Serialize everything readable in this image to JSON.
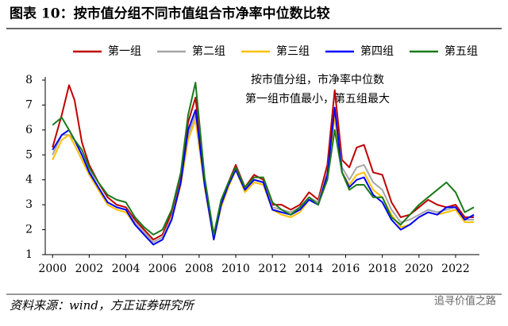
{
  "chart_data": {
    "type": "line",
    "title": "图表 10：按市值分组不同市值组合市净率中位数比较",
    "annotations": [
      "按市值分组，市净率中位数",
      "第一组市值最小，第五组最大"
    ],
    "source": "资料来源：wind，方正证券研究所",
    "watermark": "追寻价值之路",
    "x": [
      2000.0,
      2000.5,
      2000.9,
      2001.2,
      2001.6,
      2002.0,
      2002.5,
      2003.0,
      2003.5,
      2004.0,
      2004.5,
      2005.0,
      2005.5,
      2006.0,
      2006.5,
      2007.0,
      2007.4,
      2007.8,
      2008.3,
      2008.8,
      2009.2,
      2009.6,
      2010.0,
      2010.5,
      2011.0,
      2011.5,
      2012.0,
      2012.5,
      2013.0,
      2013.5,
      2014.0,
      2014.5,
      2015.0,
      2015.4,
      2015.8,
      2016.2,
      2016.6,
      2017.0,
      2017.5,
      2018.0,
      2018.5,
      2019.0,
      2019.5,
      2020.0,
      2020.5,
      2021.0,
      2021.5,
      2022.0,
      2022.5,
      2023.0
    ],
    "series": [
      {
        "name": "第一组",
        "color": "#c00000",
        "values": [
          5.3,
          6.6,
          7.8,
          7.2,
          5.5,
          4.6,
          3.9,
          3.3,
          3.0,
          2.9,
          2.4,
          2.0,
          1.6,
          1.8,
          2.7,
          4.2,
          6.3,
          7.3,
          4.0,
          1.8,
          3.1,
          3.9,
          4.6,
          3.7,
          4.2,
          4.0,
          3.0,
          3.0,
          2.8,
          3.0,
          3.5,
          3.2,
          4.6,
          7.6,
          4.8,
          4.5,
          5.3,
          5.4,
          4.3,
          4.2,
          3.1,
          2.5,
          2.6,
          2.9,
          3.2,
          3.0,
          2.9,
          3.0,
          2.5,
          2.5
        ]
      },
      {
        "name": "第二组",
        "color": "#a6a6a6",
        "values": [
          5.0,
          5.8,
          5.8,
          5.6,
          5.0,
          4.4,
          3.7,
          3.1,
          2.9,
          2.8,
          2.3,
          1.9,
          1.5,
          1.7,
          2.5,
          3.9,
          5.8,
          6.6,
          3.8,
          1.7,
          3.0,
          3.8,
          4.5,
          3.6,
          4.0,
          3.9,
          2.9,
          2.8,
          2.7,
          2.9,
          3.3,
          3.1,
          4.3,
          6.8,
          4.5,
          4.0,
          4.5,
          4.6,
          3.9,
          3.6,
          2.8,
          2.3,
          2.4,
          2.6,
          2.8,
          2.7,
          2.8,
          2.9,
          2.4,
          2.4
        ]
      },
      {
        "name": "第三组",
        "color": "#ffc000",
        "values": [
          4.8,
          5.6,
          5.8,
          5.4,
          4.8,
          4.2,
          3.6,
          3.0,
          2.8,
          2.7,
          2.2,
          1.8,
          1.4,
          1.6,
          2.4,
          3.8,
          5.6,
          6.4,
          3.7,
          1.6,
          2.9,
          3.7,
          4.4,
          3.5,
          3.9,
          3.8,
          2.8,
          2.6,
          2.5,
          2.7,
          3.2,
          3.0,
          4.2,
          6.5,
          4.3,
          3.8,
          4.2,
          4.3,
          3.6,
          3.3,
          2.6,
          2.1,
          2.2,
          2.5,
          2.7,
          2.6,
          2.7,
          2.8,
          2.3,
          2.3
        ]
      },
      {
        "name": "第四组",
        "color": "#0000ff",
        "values": [
          5.2,
          5.8,
          6.0,
          5.6,
          5.0,
          4.3,
          3.7,
          3.1,
          2.9,
          2.8,
          2.2,
          1.8,
          1.4,
          1.6,
          2.4,
          3.9,
          6.0,
          6.8,
          3.8,
          1.6,
          3.0,
          3.8,
          4.4,
          3.6,
          4.0,
          3.9,
          2.8,
          2.7,
          2.6,
          2.8,
          3.2,
          3.0,
          4.2,
          6.9,
          4.3,
          3.7,
          4.0,
          4.1,
          3.4,
          3.1,
          2.4,
          2.0,
          2.2,
          2.5,
          2.7,
          2.6,
          2.9,
          2.9,
          2.4,
          2.6
        ]
      },
      {
        "name": "第五组",
        "color": "#1a7a1a",
        "values": [
          6.2,
          6.5,
          6.0,
          5.6,
          5.2,
          4.5,
          3.9,
          3.4,
          3.2,
          3.1,
          2.5,
          2.1,
          1.8,
          2.0,
          2.8,
          4.3,
          6.6,
          7.9,
          4.1,
          1.8,
          3.2,
          3.9,
          4.5,
          3.7,
          4.1,
          4.1,
          3.1,
          2.8,
          2.6,
          2.9,
          3.3,
          3.0,
          4.0,
          6.0,
          4.3,
          3.6,
          3.8,
          3.8,
          3.3,
          3.3,
          2.5,
          2.2,
          2.6,
          3.0,
          3.3,
          3.6,
          3.9,
          3.5,
          2.7,
          2.9
        ]
      }
    ],
    "xlim": [
      1999.6,
      2023.3
    ],
    "xticks": [
      2000,
      2002,
      2004,
      2006,
      2008,
      2010,
      2012,
      2014,
      2016,
      2018,
      2020,
      2022
    ],
    "ylim": [
      1,
      8
    ],
    "yticks": [
      1,
      2,
      3,
      4,
      5,
      6,
      7,
      8
    ],
    "grid": false
  }
}
